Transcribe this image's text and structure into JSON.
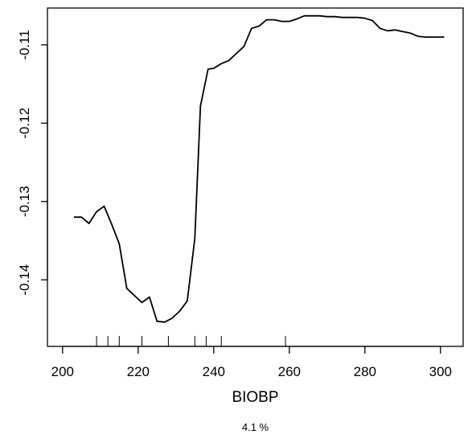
{
  "chart_data": {
    "type": "line",
    "title": "",
    "xlabel": "BIOBP",
    "subtitle": "4.1 %",
    "ylabel": "",
    "xlim": [
      196,
      306
    ],
    "ylim": [
      -0.1485,
      -0.1053
    ],
    "xticks": [
      200,
      220,
      240,
      260,
      280,
      300
    ],
    "xtick_labels": [
      "200",
      "220",
      "240",
      "260",
      "280",
      "300"
    ],
    "yticks": [
      -0.14,
      -0.13,
      -0.12,
      -0.11
    ],
    "ytick_labels": [
      "-0.14",
      "-0.13",
      "-0.12",
      "-0.11"
    ],
    "grid": false,
    "series": [
      {
        "x": [
          203,
          205,
          207,
          209,
          211,
          213,
          215,
          217,
          219,
          221,
          223,
          225,
          227,
          229,
          231,
          233,
          235,
          236.5,
          238.5,
          240,
          242,
          244,
          246,
          248,
          250,
          252,
          254,
          256,
          258,
          260,
          262,
          264,
          266,
          268,
          270,
          272,
          274,
          276,
          278,
          280,
          282,
          284,
          286,
          288,
          290,
          292,
          294,
          296,
          298,
          301
        ],
        "y": [
          -0.132,
          -0.132,
          -0.1328,
          -0.1313,
          -0.1306,
          -0.1329,
          -0.1354,
          -0.1411,
          -0.142,
          -0.1429,
          -0.1422,
          -0.1453,
          -0.1454,
          -0.1449,
          -0.144,
          -0.1427,
          -0.1347,
          -0.1178,
          -0.1131,
          -0.113,
          -0.1124,
          -0.112,
          -0.1111,
          -0.1102,
          -0.1079,
          -0.1076,
          -0.1068,
          -0.1068,
          -0.107,
          -0.107,
          -0.1067,
          -0.1063,
          -0.1063,
          -0.1063,
          -0.1064,
          -0.1064,
          -0.1065,
          -0.1065,
          -0.1065,
          -0.1066,
          -0.1069,
          -0.1079,
          -0.1082,
          -0.1081,
          -0.1083,
          -0.1085,
          -0.1089,
          -0.109,
          -0.109,
          -0.109
        ]
      }
    ],
    "rug": [
      209,
      212,
      215,
      221,
      228,
      235,
      238,
      242,
      259
    ]
  }
}
